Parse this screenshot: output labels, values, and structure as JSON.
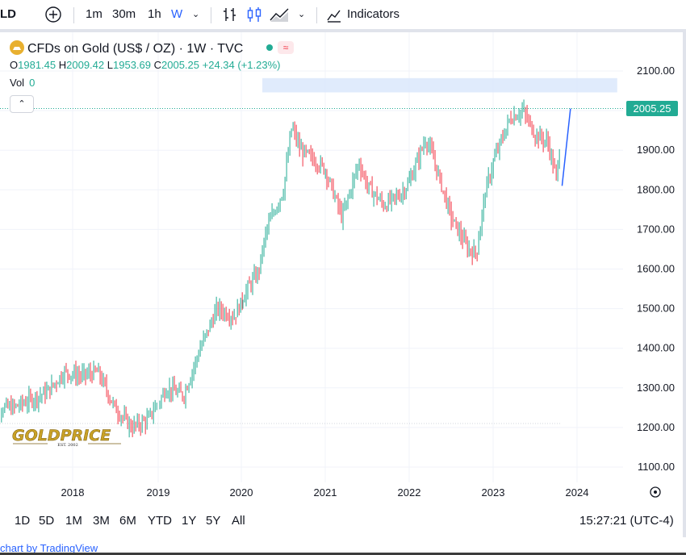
{
  "toolbar": {
    "symbol_fragment": "LD",
    "intervals": [
      "1m",
      "30m",
      "1h",
      "W"
    ],
    "active_interval": "W",
    "indicators_label": "Indicators"
  },
  "legend": {
    "title": "CFDs on Gold (US$ / OZ) · 1W · TVC",
    "o_label": "O",
    "o_value": "1981.45",
    "h_label": "H",
    "h_value": "2009.42",
    "l_label": "L",
    "l_value": "1953.69",
    "c_label": "C",
    "c_value": "2005.25",
    "change": "+24.34 (+1.23%)",
    "vol_label": "Vol",
    "vol_value": "0"
  },
  "last_price": "2005.25",
  "watermark": {
    "brand": "GOLDPRICE",
    "est": "EST. 2002"
  },
  "bottom": {
    "ranges": [
      "1D",
      "5D",
      "1M",
      "3M",
      "6M",
      "YTD",
      "1Y",
      "5Y",
      "All"
    ],
    "clock": "15:27:21 (UTC-4)"
  },
  "footer": {
    "text": "chart by TradingView"
  },
  "colors": {
    "up": "#22ab94",
    "down": "#f23645",
    "zone": "#dbe7fb",
    "accent": "#2962ff"
  },
  "chart_data": {
    "type": "candlestick",
    "series_name": "CFDs on Gold (US$ / OZ)",
    "interval": "1W",
    "y_ticks": [
      "2100.00",
      "2000.00",
      "1900.00",
      "1800.00",
      "1700.00",
      "1600.00",
      "1500.00",
      "1400.00",
      "1300.00",
      "1200.00",
      "1100.00"
    ],
    "x_ticks": [
      "2018",
      "2019",
      "2020",
      "2021",
      "2022",
      "2023",
      "2024"
    ],
    "ylim": [
      1060,
      2100
    ],
    "resistance_zone": [
      2046,
      2082
    ],
    "last_close": 2005.25,
    "x": [
      2017.3,
      2017.5,
      2017.7,
      2017.9,
      2018.1,
      2018.3,
      2018.5,
      2018.7,
      2018.9,
      2019.1,
      2019.3,
      2019.5,
      2019.7,
      2019.9,
      2020.1,
      2020.2,
      2020.3,
      2020.5,
      2020.6,
      2020.7,
      2020.9,
      2021.0,
      2021.2,
      2021.4,
      2021.5,
      2021.7,
      2021.9,
      2022.0,
      2022.2,
      2022.3,
      2022.5,
      2022.7,
      2022.8,
      2022.9,
      2023.0,
      2023.2,
      2023.35,
      2023.5,
      2023.65,
      2023.75,
      2023.85
    ],
    "y": [
      1250,
      1270,
      1290,
      1340,
      1330,
      1340,
      1250,
      1200,
      1220,
      1300,
      1280,
      1400,
      1500,
      1480,
      1560,
      1590,
      1700,
      1800,
      1960,
      1900,
      1870,
      1850,
      1730,
      1870,
      1810,
      1760,
      1790,
      1820,
      1930,
      1870,
      1730,
      1650,
      1640,
      1790,
      1870,
      1980,
      2000,
      1940,
      1920,
      1830,
      2005
    ]
  }
}
